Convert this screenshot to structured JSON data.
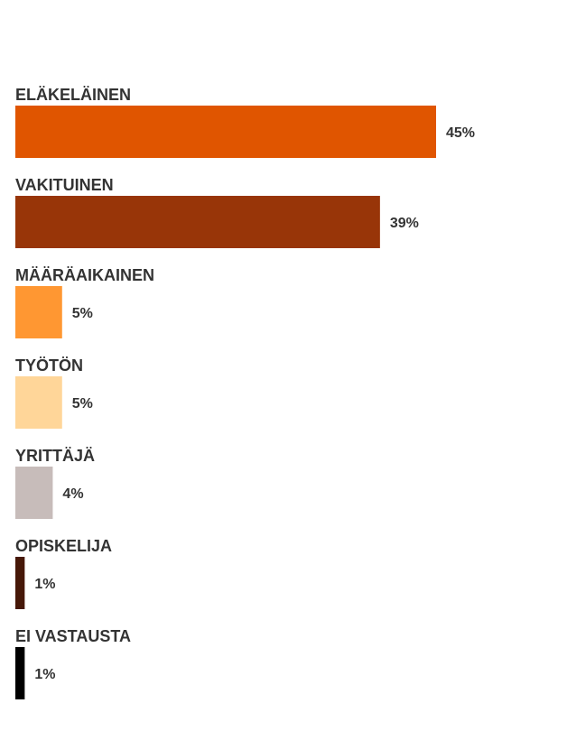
{
  "chart_data": {
    "type": "bar",
    "orientation": "horizontal",
    "categories": [
      "ELÄKELÄINEN",
      "VAKITUINEN",
      "MÄÄRÄAIKAINEN",
      "TYÖTÖN",
      "YRITTÄJÄ",
      "OPISKELIJA",
      "EI VASTAUSTA"
    ],
    "values": [
      45,
      39,
      5,
      5,
      4,
      1,
      1
    ],
    "value_labels": [
      "45%",
      "39%",
      "5%",
      "5%",
      "4%",
      "1%",
      "1%"
    ],
    "colors": [
      "#E05500",
      "#983508",
      "#FF9732",
      "#FFD699",
      "#C7BCBA",
      "#461808",
      "#000000"
    ],
    "unit": "%",
    "title": "",
    "xlabel": "",
    "ylabel": "",
    "xlim": [
      0,
      45
    ],
    "grid": false,
    "legend": "none"
  }
}
